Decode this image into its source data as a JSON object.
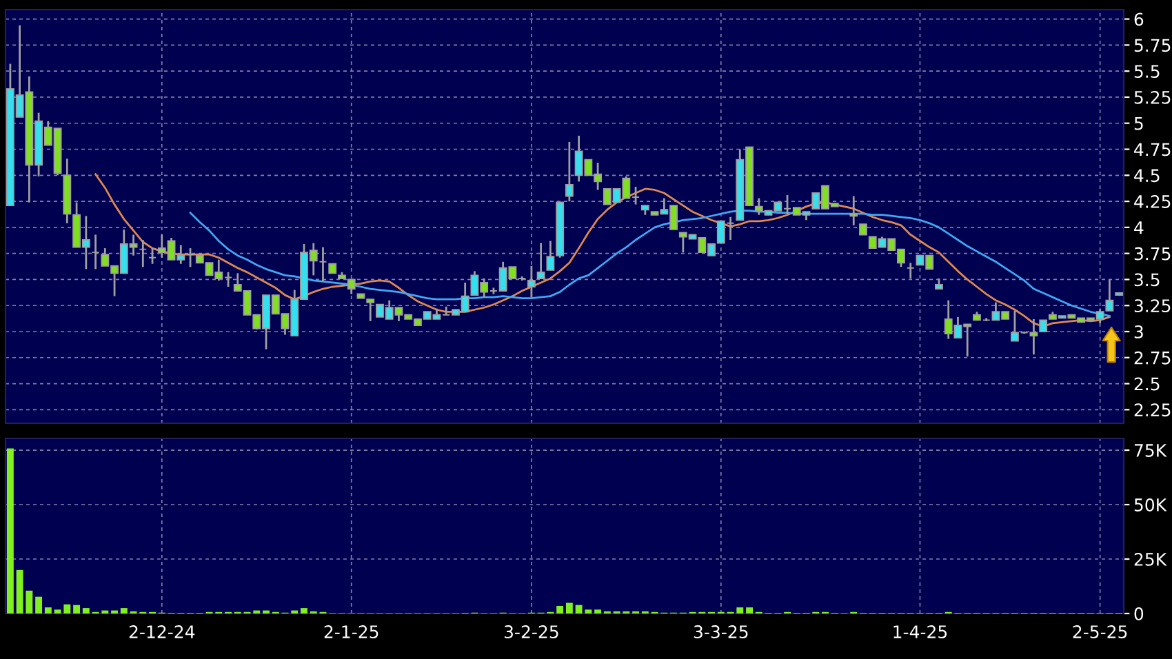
{
  "chart_data": [
    {
      "type": "candlestick",
      "categories": [
        null,
        null,
        null,
        null,
        null,
        null,
        null,
        null,
        null,
        null,
        null,
        null,
        null,
        null,
        null,
        null,
        null,
        null,
        null,
        null,
        null,
        null,
        null,
        null,
        null,
        null,
        null,
        null,
        null,
        null,
        null,
        null,
        null,
        null,
        null,
        null,
        null,
        null,
        null,
        null,
        null,
        null,
        null,
        null,
        null,
        null,
        null,
        null,
        null,
        null,
        null,
        null,
        null,
        null,
        null,
        null,
        null,
        null,
        null,
        null,
        null,
        null,
        null,
        null,
        null,
        null,
        null,
        null,
        null,
        null,
        null,
        null,
        null,
        null,
        null,
        null,
        null,
        null,
        null,
        null,
        null,
        null,
        null,
        null,
        null,
        null,
        null,
        null,
        null,
        null,
        null,
        null,
        null,
        null,
        null,
        null,
        null,
        null,
        null,
        null,
        null,
        null,
        null,
        null,
        null,
        null,
        null,
        null,
        null,
        null,
        null,
        null,
        null,
        null,
        null,
        null,
        null,
        null
      ],
      "ohlc": [
        [
          4.21,
          5.57,
          4.21,
          5.33
        ],
        [
          5.06,
          5.94,
          5.06,
          5.27
        ],
        [
          5.3,
          5.45,
          4.24,
          4.6
        ],
        [
          4.6,
          5.1,
          4.49,
          5.02
        ],
        [
          4.96,
          5.02,
          4.79,
          4.79
        ],
        [
          4.95,
          4.95,
          4.5,
          4.52
        ],
        [
          4.5,
          4.66,
          4.04,
          4.13
        ],
        [
          4.12,
          4.24,
          3.81,
          3.81
        ],
        [
          3.81,
          4.11,
          3.6,
          3.88
        ],
        [
          3.76,
          3.93,
          3.6,
          3.76
        ],
        [
          3.74,
          3.8,
          3.63,
          3.63
        ],
        [
          3.63,
          3.63,
          3.34,
          3.56
        ],
        [
          3.56,
          3.98,
          3.56,
          3.84
        ],
        [
          3.84,
          3.93,
          3.73,
          3.81
        ],
        [
          3.79,
          3.88,
          3.62,
          3.79
        ],
        [
          3.71,
          3.8,
          3.65,
          3.71
        ],
        [
          3.8,
          3.93,
          3.71,
          3.76
        ],
        [
          3.87,
          3.9,
          3.69,
          3.69
        ],
        [
          3.69,
          3.83,
          3.65,
          3.73
        ],
        [
          3.74,
          3.8,
          3.62,
          3.74
        ],
        [
          3.73,
          3.75,
          3.66,
          3.66
        ],
        [
          3.66,
          3.66,
          3.54,
          3.54
        ],
        [
          3.57,
          3.69,
          3.49,
          3.51
        ],
        [
          3.52,
          3.57,
          3.43,
          3.52
        ],
        [
          3.45,
          3.56,
          3.39,
          3.39
        ],
        [
          3.39,
          3.39,
          3.16,
          3.16
        ],
        [
          3.16,
          3.16,
          3.02,
          3.03
        ],
        [
          3.03,
          3.35,
          2.83,
          3.35
        ],
        [
          3.35,
          3.35,
          3.17,
          3.17
        ],
        [
          3.17,
          3.17,
          2.97,
          3.03
        ],
        [
          2.96,
          3.4,
          2.96,
          3.31
        ],
        [
          3.31,
          3.84,
          3.31,
          3.76
        ],
        [
          3.78,
          3.85,
          3.54,
          3.68
        ],
        [
          3.67,
          3.81,
          3.48,
          3.67
        ],
        [
          3.65,
          3.65,
          3.56,
          3.56
        ],
        [
          3.54,
          3.57,
          3.51,
          3.51
        ],
        [
          3.5,
          3.5,
          3.36,
          3.41
        ],
        [
          3.36,
          3.36,
          3.32,
          3.32
        ],
        [
          3.31,
          3.31,
          3.1,
          3.28
        ],
        [
          3.14,
          3.26,
          3.14,
          3.26
        ],
        [
          3.12,
          3.3,
          3.12,
          3.23
        ],
        [
          3.23,
          3.23,
          3.1,
          3.16
        ],
        [
          3.16,
          3.16,
          3.12,
          3.12
        ],
        [
          3.12,
          3.12,
          3.06,
          3.06
        ],
        [
          3.12,
          3.19,
          3.12,
          3.19
        ],
        [
          3.12,
          3.22,
          3.12,
          3.16
        ],
        [
          3.16,
          3.24,
          3.16,
          3.16
        ],
        [
          3.16,
          3.21,
          3.16,
          3.21
        ],
        [
          3.19,
          3.47,
          3.19,
          3.34
        ],
        [
          3.35,
          3.58,
          3.35,
          3.54
        ],
        [
          3.47,
          3.51,
          3.33,
          3.38
        ],
        [
          3.39,
          3.42,
          3.36,
          3.39
        ],
        [
          3.39,
          3.67,
          3.39,
          3.61
        ],
        [
          3.62,
          3.62,
          3.51,
          3.51
        ],
        [
          3.51,
          3.53,
          3.49,
          3.51
        ],
        [
          3.43,
          3.63,
          3.33,
          3.49
        ],
        [
          3.51,
          3.85,
          3.51,
          3.57
        ],
        [
          3.59,
          3.87,
          3.59,
          3.72
        ],
        [
          3.73,
          4.24,
          3.71,
          4.24
        ],
        [
          4.3,
          4.82,
          4.25,
          4.41
        ],
        [
          4.5,
          4.88,
          4.44,
          4.73
        ],
        [
          4.65,
          4.65,
          4.5,
          4.5
        ],
        [
          4.51,
          4.62,
          4.36,
          4.44
        ],
        [
          4.37,
          4.37,
          4.22,
          4.22
        ],
        [
          4.24,
          4.37,
          4.24,
          4.37
        ],
        [
          4.47,
          4.49,
          4.28,
          4.28
        ],
        [
          4.29,
          4.39,
          4.22,
          4.29
        ],
        [
          4.17,
          4.21,
          4.12,
          4.21
        ],
        [
          4.15,
          4.15,
          4.12,
          4.12
        ],
        [
          4.13,
          4.28,
          4.13,
          4.17
        ],
        [
          4.21,
          4.21,
          3.98,
          3.98
        ],
        [
          3.95,
          3.95,
          3.76,
          3.91
        ],
        [
          3.89,
          3.93,
          3.89,
          3.93
        ],
        [
          3.9,
          3.9,
          3.76,
          3.76
        ],
        [
          3.73,
          3.84,
          3.73,
          3.84
        ],
        [
          3.85,
          4.06,
          3.85,
          4.06
        ],
        [
          4.04,
          4.1,
          3.88,
          4.04
        ],
        [
          4.07,
          4.75,
          4.07,
          4.65
        ],
        [
          4.77,
          4.77,
          4.21,
          4.21
        ],
        [
          4.2,
          4.28,
          4.12,
          4.16
        ],
        [
          4.12,
          4.16,
          4.12,
          4.16
        ],
        [
          4.16,
          4.24,
          4.16,
          4.24
        ],
        [
          4.18,
          4.31,
          4.13,
          4.18
        ],
        [
          4.19,
          4.19,
          4.12,
          4.12
        ],
        [
          4.12,
          4.15,
          4.07,
          4.15
        ],
        [
          4.18,
          4.33,
          4.18,
          4.33
        ],
        [
          4.4,
          4.4,
          4.18,
          4.18
        ],
        [
          4.23,
          4.23,
          4.2,
          4.2
        ],
        null,
        [
          4.13,
          4.3,
          4.02,
          4.11
        ],
        [
          4.03,
          4.03,
          3.93,
          3.93
        ],
        [
          3.91,
          3.91,
          3.8,
          3.8
        ],
        [
          3.81,
          3.91,
          3.81,
          3.89
        ],
        [
          3.89,
          3.89,
          3.78,
          3.78
        ],
        [
          3.79,
          3.79,
          3.62,
          3.66
        ],
        [
          3.61,
          3.66,
          3.51,
          3.61
        ],
        [
          3.64,
          3.73,
          3.64,
          3.73
        ],
        [
          3.73,
          3.73,
          3.6,
          3.6
        ],
        [
          3.41,
          3.51,
          3.41,
          3.45
        ],
        [
          3.12,
          3.3,
          2.93,
          2.98
        ],
        [
          2.94,
          3.14,
          2.94,
          3.06
        ],
        [
          3.07,
          3.07,
          2.76,
          3.05
        ],
        [
          3.16,
          3.19,
          3.11,
          3.11
        ],
        [
          3.11,
          3.13,
          3.1,
          3.11
        ],
        [
          3.11,
          3.28,
          3.11,
          3.19
        ],
        [
          3.19,
          3.19,
          3.12,
          3.12
        ],
        [
          2.91,
          3.2,
          2.91,
          2.99
        ],
        [
          2.99,
          3.0,
          2.98,
          2.99
        ],
        [
          2.99,
          3.12,
          2.78,
          2.96
        ],
        [
          3.0,
          3.11,
          3.0,
          3.11
        ],
        [
          3.16,
          3.19,
          3.12,
          3.12
        ],
        [
          3.13,
          3.15,
          3.13,
          3.15
        ],
        [
          3.16,
          3.16,
          3.13,
          3.13
        ],
        [
          3.13,
          3.13,
          3.09,
          3.09
        ],
        [
          3.13,
          3.13,
          3.11,
          3.11
        ],
        [
          3.12,
          3.22,
          3.08,
          3.19
        ],
        [
          3.2,
          3.5,
          3.2,
          3.3
        ],
        [
          3.35,
          3.37,
          3.35,
          3.37
        ]
      ],
      "colors": [
        "#33e0f0",
        "#33e0f0",
        "#80e020",
        "#33e0f0",
        "#80e020",
        "#80e020",
        "#80e020",
        "#80e020",
        "#33e0f0",
        "#a0a0a0",
        "#80e020",
        "#80e020",
        "#33e0f0",
        "#80e020",
        "#a0a0a0",
        "#a0a0a0",
        "#80e020",
        "#80e020",
        "#33e0f0",
        "#a0a0a0",
        "#80e020",
        "#80e020",
        "#80e020",
        "#a0a0a0",
        "#80e020",
        "#80e020",
        "#80e020",
        "#33e0f0",
        "#80e020",
        "#80e020",
        "#33e0f0",
        "#33e0f0",
        "#80e020",
        "#a0a0a0",
        "#80e020",
        "#80e020",
        "#80e020",
        "#80e020",
        "#80e020",
        "#33e0f0",
        "#33e0f0",
        "#80e020",
        "#80e020",
        "#80e020",
        "#33e0f0",
        "#33e0f0",
        "#a0a0a0",
        "#33e0f0",
        "#33e0f0",
        "#33e0f0",
        "#80e020",
        "#a0a0a0",
        "#33e0f0",
        "#80e020",
        "#a0a0a0",
        "#33e0f0",
        "#33e0f0",
        "#33e0f0",
        "#33e0f0",
        "#33e0f0",
        "#33e0f0",
        "#80e020",
        "#80e020",
        "#80e020",
        "#33e0f0",
        "#80e020",
        "#a0a0a0",
        "#33e0f0",
        "#80e020",
        "#33e0f0",
        "#80e020",
        "#80e020",
        "#33e0f0",
        "#80e020",
        "#33e0f0",
        "#33e0f0",
        "#a0a0a0",
        "#33e0f0",
        "#80e020",
        "#80e020",
        "#33e0f0",
        "#33e0f0",
        "#a0a0a0",
        "#80e020",
        "#33e0f0",
        "#33e0f0",
        "#80e020",
        "#80e020",
        null,
        "#80e020",
        "#80e020",
        "#80e020",
        "#33e0f0",
        "#80e020",
        "#80e020",
        "#a0a0a0",
        "#33e0f0",
        "#80e020",
        "#33e0f0",
        "#80e020",
        "#33e0f0",
        "#80e020",
        "#80e020",
        "#a0a0a0",
        "#33e0f0",
        "#80e020",
        "#33e0f0",
        "#a0a0a0",
        "#80e020",
        "#33e0f0",
        "#80e020",
        "#33e0f0",
        "#80e020",
        "#80e020",
        "#80e020",
        "#33e0f0",
        "#33e0f0",
        "#33e0f0"
      ],
      "series": [
        {
          "type": "line",
          "color": "#e08850",
          "values": [
            null,
            null,
            null,
            null,
            null,
            null,
            null,
            null,
            null,
            4.51,
            4.38,
            4.22,
            4.08,
            3.97,
            3.86,
            3.8,
            3.77,
            3.75,
            3.74,
            3.74,
            3.74,
            3.74,
            3.71,
            3.66,
            3.61,
            3.57,
            3.52,
            3.47,
            3.42,
            3.35,
            3.31,
            3.34,
            3.38,
            3.41,
            3.43,
            3.44,
            3.45,
            3.46,
            3.48,
            3.49,
            3.48,
            3.42,
            3.35,
            3.29,
            3.25,
            3.21,
            3.19,
            3.19,
            3.19,
            3.21,
            3.23,
            3.26,
            3.3,
            3.34,
            3.39,
            3.43,
            3.47,
            3.51,
            3.58,
            3.66,
            3.8,
            3.95,
            4.08,
            4.17,
            4.24,
            4.29,
            4.33,
            4.37,
            4.36,
            4.33,
            4.27,
            4.21,
            4.15,
            4.11,
            4.07,
            4.04,
            4.01,
            4.03,
            4.06,
            4.06,
            4.07,
            4.09,
            4.12,
            4.16,
            4.2,
            4.23,
            4.24,
            4.22,
            4.2,
            4.18,
            4.14,
            4.1,
            4.07,
            4.05,
            4.02,
            3.93,
            3.87,
            3.81,
            3.76,
            3.67,
            3.58,
            3.5,
            3.43,
            3.36,
            3.3,
            3.26,
            3.21,
            3.15,
            3.08,
            3.05,
            3.08,
            3.09,
            3.1,
            3.11,
            3.1,
            3.11,
            3.14,
            null
          ]
        },
        {
          "type": "line",
          "color": "#3fa8f0",
          "values": [
            null,
            null,
            null,
            null,
            null,
            null,
            null,
            null,
            null,
            null,
            null,
            null,
            null,
            null,
            null,
            null,
            null,
            null,
            null,
            4.14,
            4.05,
            3.97,
            3.87,
            3.79,
            3.73,
            3.69,
            3.64,
            3.6,
            3.57,
            3.54,
            3.53,
            3.51,
            3.49,
            3.48,
            3.47,
            3.46,
            3.45,
            3.43,
            3.41,
            3.4,
            3.39,
            3.38,
            3.36,
            3.34,
            3.32,
            3.31,
            3.31,
            3.31,
            3.32,
            3.32,
            3.33,
            3.33,
            3.34,
            3.33,
            3.32,
            3.32,
            3.33,
            3.34,
            3.38,
            3.45,
            3.51,
            3.54,
            3.61,
            3.68,
            3.75,
            3.81,
            3.88,
            3.94,
            4.0,
            4.03,
            4.05,
            4.07,
            4.08,
            4.09,
            4.11,
            4.13,
            4.15,
            4.16,
            4.16,
            4.15,
            4.15,
            4.14,
            4.14,
            4.13,
            4.13,
            4.13,
            4.13,
            4.13,
            4.13,
            4.13,
            4.13,
            4.12,
            4.12,
            4.11,
            4.1,
            4.09,
            4.07,
            4.04,
            4.0,
            3.94,
            3.88,
            3.82,
            3.77,
            3.72,
            3.67,
            3.61,
            3.55,
            3.49,
            3.41,
            3.37,
            3.33,
            3.29,
            3.25,
            3.22,
            3.19,
            3.17,
            3.15,
            null
          ]
        }
      ],
      "ylim": [
        2.12,
        6.09
      ],
      "yticks": [
        6,
        5.75,
        5.5,
        5.25,
        5,
        4.75,
        4.5,
        4.25,
        4,
        3.75,
        3.5,
        3.25,
        3,
        2.75,
        2.5,
        2.25
      ],
      "grid": true,
      "tick_labels": "y"
    },
    {
      "type": "bar",
      "categories": [
        null,
        null,
        null,
        null,
        null,
        null,
        null,
        null,
        null,
        null,
        null,
        null,
        null,
        null,
        null,
        null,
        "2-12-24",
        null,
        null,
        null,
        null,
        null,
        null,
        null,
        null,
        null,
        null,
        null,
        null,
        null,
        null,
        null,
        null,
        null,
        null,
        null,
        "2-1-25",
        null,
        null,
        null,
        null,
        null,
        null,
        null,
        null,
        null,
        null,
        null,
        null,
        null,
        null,
        null,
        null,
        null,
        null,
        "3-2-25",
        null,
        null,
        null,
        null,
        null,
        null,
        null,
        null,
        null,
        null,
        null,
        null,
        null,
        null,
        null,
        null,
        null,
        null,
        null,
        "3-3-25",
        null,
        null,
        null,
        null,
        null,
        null,
        null,
        null,
        null,
        null,
        null,
        null,
        null,
        null,
        null,
        null,
        null,
        null,
        null,
        null,
        "1-4-25",
        null,
        null,
        null,
        null,
        null,
        null,
        null,
        null,
        null,
        null,
        null,
        null,
        null,
        null,
        null,
        null,
        null,
        null,
        "2-5-25",
        null,
        null
      ],
      "values": [
        75.8,
        20,
        10.5,
        7.7,
        2.8,
        1.8,
        4.2,
        3.9,
        2.5,
        0.7,
        1.4,
        1.4,
        2.5,
        1.0,
        0.7,
        0.7,
        0.4,
        0.3,
        0.3,
        0.3,
        0.3,
        0.7,
        0.7,
        0.7,
        0.7,
        0.7,
        1.4,
        1.4,
        0.7,
        0.4,
        1.4,
        2.5,
        1.0,
        0.7,
        0.2,
        0.2,
        0.2,
        0.2,
        0.2,
        0.2,
        0.2,
        0.2,
        0.2,
        0.2,
        0.2,
        0.2,
        0.2,
        0.2,
        0.3,
        0.4,
        0.2,
        0.2,
        0.4,
        0.2,
        0.2,
        0.4,
        0.4,
        0.7,
        3.5,
        4.9,
        3.9,
        1.8,
        1.8,
        1.0,
        1.0,
        1.0,
        1.0,
        1.0,
        0.7,
        0.4,
        0.4,
        0.4,
        0.7,
        0.7,
        0.7,
        0.7,
        0.7,
        2.8,
        2.8,
        0.7,
        0.3,
        0.3,
        0.7,
        0.3,
        0.3,
        0.7,
        0.7,
        0.3,
        0.2,
        0.7,
        0.3,
        0.3,
        0.3,
        0.3,
        0.3,
        0.3,
        0.3,
        0.3,
        0.3,
        0.7,
        0.3,
        0.3,
        0.3,
        0.3,
        0.3,
        0.3,
        0.3,
        0.3,
        0.3,
        0.3,
        0.3,
        0.3,
        0.3,
        0.3,
        0.3,
        0.3,
        0.3,
        0.3
      ],
      "color": "#80f020",
      "ylim": [
        0,
        80.4
      ],
      "yticks": [
        {
          "value": 0,
          "label": "0"
        },
        {
          "value": 25,
          "label": "25K"
        },
        {
          "value": 50,
          "label": "50K"
        },
        {
          "value": 75,
          "label": "75K"
        }
      ],
      "grid": true
    }
  ]
}
